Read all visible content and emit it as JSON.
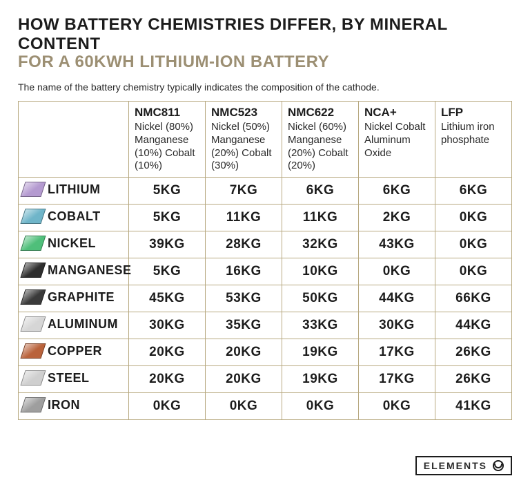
{
  "title": "HOW BATTERY CHEMISTRIES DIFFER, BY MINERAL CONTENT",
  "subtitle": "FOR A 60KWH LITHIUM-ION BATTERY",
  "caption": "The name of the battery chemistry typically indicates the composition of the cathode.",
  "unit_suffix": "KG",
  "footer_brand": "ELEMENTS",
  "colors": {
    "title": "#1c1c1c",
    "subtitle": "#9c8f73",
    "table_border": "#b7a87f",
    "text": "#2a2a2a",
    "background": "#ffffff"
  },
  "chemistries": [
    {
      "name": "NMC811",
      "desc": "Nickel (80%) Manganese (10%) Cobalt (10%)"
    },
    {
      "name": "NMC523",
      "desc": "Nickel (50%) Manganese (20%) Cobalt (30%)"
    },
    {
      "name": "NMC622",
      "desc": "Nickel (60%) Manganese (20%) Cobalt (20%)"
    },
    {
      "name": "NCA+",
      "desc": "Nickel Cobalt Aluminum Oxide"
    },
    {
      "name": "LFP",
      "desc": "Lithium iron phosphate"
    }
  ],
  "minerals": [
    {
      "label": "LITHIUM",
      "icon_color": "#b49ad0",
      "values": [
        5,
        7,
        6,
        6,
        6
      ]
    },
    {
      "label": "COBALT",
      "icon_color": "#6fb5c9",
      "values": [
        5,
        11,
        11,
        2,
        0
      ]
    },
    {
      "label": "NICKEL",
      "icon_color": "#4fbf7a",
      "values": [
        39,
        28,
        32,
        43,
        0
      ]
    },
    {
      "label": "MANGANESE",
      "icon_color": "#2e2e2e",
      "values": [
        5,
        16,
        10,
        0,
        0
      ]
    },
    {
      "label": "GRAPHITE",
      "icon_color": "#3a3a3a",
      "values": [
        45,
        53,
        50,
        44,
        66
      ]
    },
    {
      "label": "ALUMINUM",
      "icon_color": "#d6d6d6",
      "values": [
        30,
        35,
        33,
        30,
        44
      ]
    },
    {
      "label": "COPPER",
      "icon_color": "#b9623b",
      "values": [
        20,
        20,
        19,
        17,
        26
      ]
    },
    {
      "label": "STEEL",
      "icon_color": "#cfcfcf",
      "values": [
        20,
        20,
        19,
        17,
        26
      ]
    },
    {
      "label": "IRON",
      "icon_color": "#9e9e9e",
      "values": [
        0,
        0,
        0,
        0,
        41
      ]
    }
  ]
}
